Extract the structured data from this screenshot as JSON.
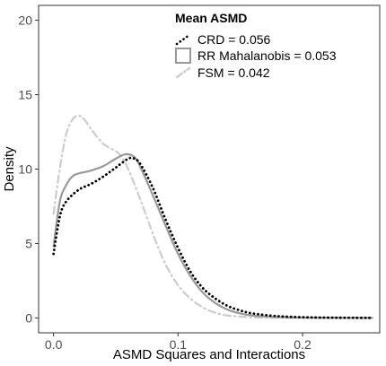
{
  "chart_data": {
    "type": "line",
    "xlabel": "ASMD Squares and Interactions",
    "ylabel": "Density",
    "xlim": [
      -0.012,
      0.262
    ],
    "ylim": [
      -1.0,
      21.0
    ],
    "x_ticks": [
      0.0,
      0.1,
      0.2
    ],
    "x_tick_labels": [
      "0.0",
      "0.1",
      "0.2"
    ],
    "y_ticks": [
      0,
      5,
      10,
      15,
      20
    ],
    "y_tick_labels": [
      "0",
      "5",
      "10",
      "15",
      "20"
    ],
    "grid": false,
    "legend": {
      "title": "Mean ASMD",
      "placement": "top-center",
      "entries": [
        "CRD =  0.056",
        "RR Mahalanobis =  0.053",
        "FSM =  0.042"
      ]
    },
    "series": [
      {
        "name": "CRD",
        "color": "#000000",
        "dash": "dotted",
        "points": [
          [
            0.0,
            4.3
          ],
          [
            0.005,
            6.8
          ],
          [
            0.01,
            7.8
          ],
          [
            0.02,
            8.6
          ],
          [
            0.03,
            9.0
          ],
          [
            0.04,
            9.5
          ],
          [
            0.05,
            10.1
          ],
          [
            0.06,
            10.7
          ],
          [
            0.065,
            10.7
          ],
          [
            0.07,
            10.3
          ],
          [
            0.08,
            8.7
          ],
          [
            0.09,
            6.6
          ],
          [
            0.1,
            4.7
          ],
          [
            0.11,
            3.1
          ],
          [
            0.12,
            2.0
          ],
          [
            0.13,
            1.3
          ],
          [
            0.14,
            0.8
          ],
          [
            0.15,
            0.5
          ],
          [
            0.16,
            0.3
          ],
          [
            0.18,
            0.12
          ],
          [
            0.2,
            0.05
          ],
          [
            0.22,
            0.02
          ],
          [
            0.256,
            0.0
          ]
        ]
      },
      {
        "name": "RR Mahalanobis",
        "color": "#999999",
        "dash": "solid",
        "points": [
          [
            0.0,
            4.8
          ],
          [
            0.005,
            7.8
          ],
          [
            0.01,
            8.9
          ],
          [
            0.015,
            9.5
          ],
          [
            0.02,
            9.7
          ],
          [
            0.03,
            9.9
          ],
          [
            0.04,
            10.2
          ],
          [
            0.05,
            10.7
          ],
          [
            0.058,
            11.0
          ],
          [
            0.065,
            10.8
          ],
          [
            0.07,
            10.1
          ],
          [
            0.08,
            8.2
          ],
          [
            0.09,
            6.2
          ],
          [
            0.1,
            4.3
          ],
          [
            0.11,
            2.8
          ],
          [
            0.12,
            1.7
          ],
          [
            0.13,
            1.0
          ],
          [
            0.14,
            0.55
          ],
          [
            0.15,
            0.3
          ],
          [
            0.16,
            0.16
          ],
          [
            0.18,
            0.06
          ],
          [
            0.2,
            0.02
          ],
          [
            0.256,
            0.0
          ]
        ]
      },
      {
        "name": "FSM",
        "color": "#cccccc",
        "dash": "dashdot",
        "points": [
          [
            0.0,
            7.0
          ],
          [
            0.005,
            10.0
          ],
          [
            0.01,
            12.3
          ],
          [
            0.015,
            13.3
          ],
          [
            0.02,
            13.6
          ],
          [
            0.025,
            13.3
          ],
          [
            0.03,
            12.7
          ],
          [
            0.04,
            11.7
          ],
          [
            0.05,
            11.2
          ],
          [
            0.055,
            10.8
          ],
          [
            0.06,
            10.0
          ],
          [
            0.07,
            7.9
          ],
          [
            0.08,
            5.6
          ],
          [
            0.09,
            3.6
          ],
          [
            0.1,
            2.2
          ],
          [
            0.11,
            1.3
          ],
          [
            0.12,
            0.7
          ],
          [
            0.13,
            0.35
          ],
          [
            0.14,
            0.16
          ],
          [
            0.16,
            0.04
          ],
          [
            0.18,
            0.01
          ],
          [
            0.256,
            0.0
          ]
        ]
      }
    ]
  }
}
